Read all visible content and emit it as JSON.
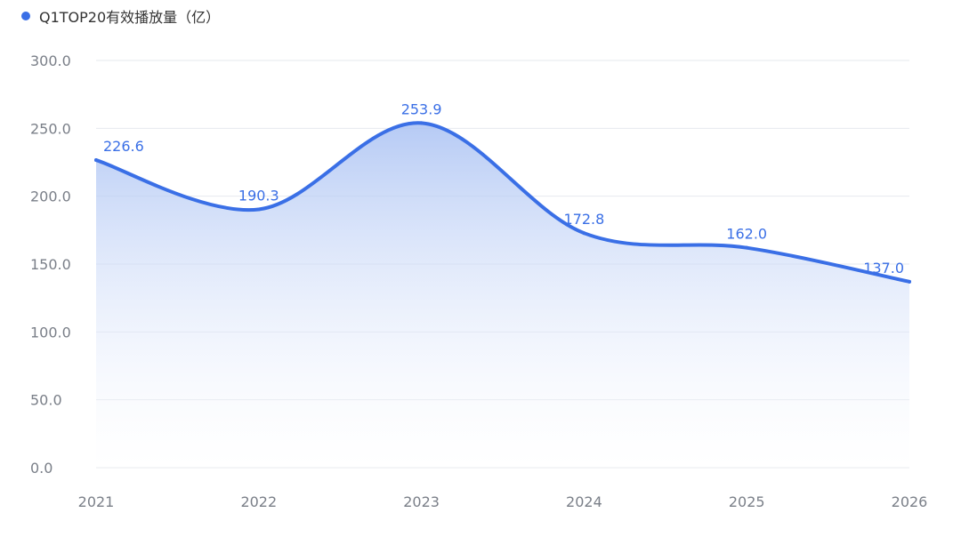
{
  "chart_data": {
    "type": "area",
    "categories": [
      "2021",
      "2022",
      "2023",
      "2024",
      "2025",
      "2026"
    ],
    "series": [
      {
        "name": "Q1TOP20有效播放量（亿）",
        "values": [
          226.6,
          190.3,
          253.9,
          172.8,
          162.0,
          137.0
        ],
        "labels": [
          "226.6",
          "190.3",
          "253.9",
          "172.8",
          "162.0",
          "137.0"
        ]
      }
    ],
    "yticks": [
      "0.0",
      "50.0",
      "100.0",
      "150.0",
      "200.0",
      "250.0",
      "300.0"
    ],
    "ylim": [
      0,
      300
    ],
    "grid": true,
    "smooth": true,
    "legend_position": "top-left",
    "colors": {
      "line": "#3a6fe6",
      "area_top": "#a9c1f3",
      "grid": "#e6e8ee",
      "axis_text": "#7a7f88",
      "label": "#3a6fe6"
    }
  }
}
